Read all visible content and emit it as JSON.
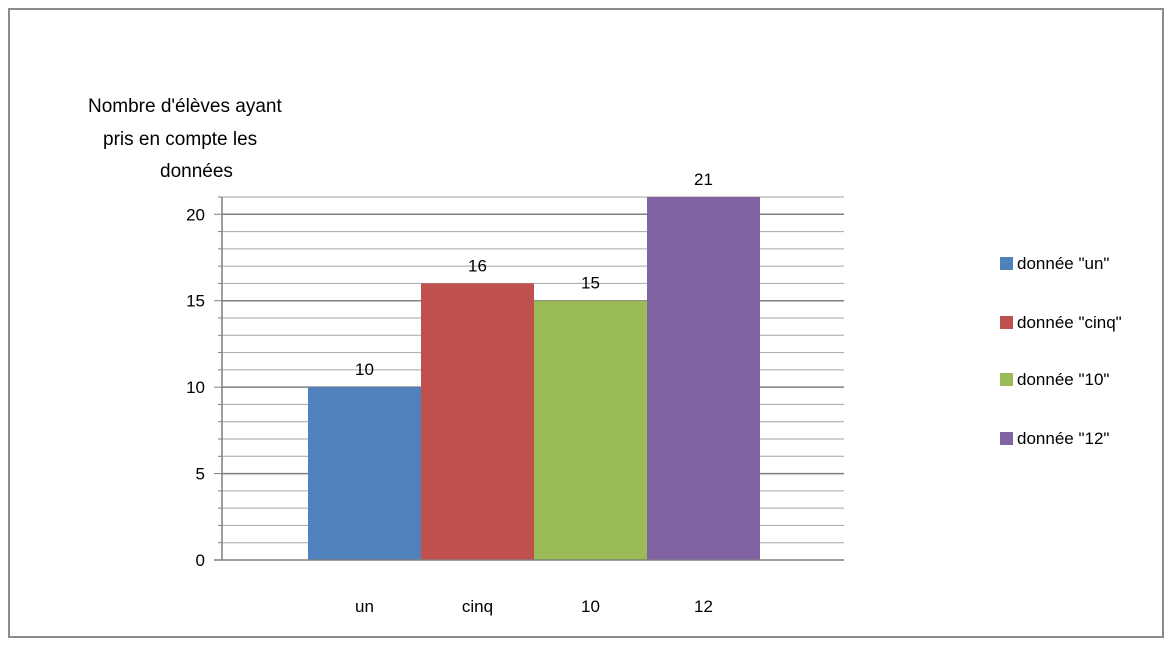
{
  "chart_data": {
    "type": "bar",
    "categories": [
      "un",
      "cinq",
      "10",
      "12"
    ],
    "values": [
      10,
      16,
      15,
      21
    ],
    "colors": [
      "#4f81bd",
      "#c0504d",
      "#9bbb59",
      "#8064a2"
    ],
    "ylabel_lines": [
      "Nombre d'élèves ayant",
      "pris en compte  les",
      "données"
    ],
    "xlabel": "",
    "ylim": [
      0,
      21
    ],
    "yticks": [
      0,
      5,
      10,
      15,
      20
    ],
    "minor_tick_step": 1,
    "grid": true,
    "legend_position": "right",
    "legend": [
      "donnée \"un\"",
      "donnée \"cinq\"",
      "donnée \"10\"",
      "donnée \"12\""
    ],
    "data_labels": [
      "10",
      "16",
      "15",
      "21"
    ]
  }
}
